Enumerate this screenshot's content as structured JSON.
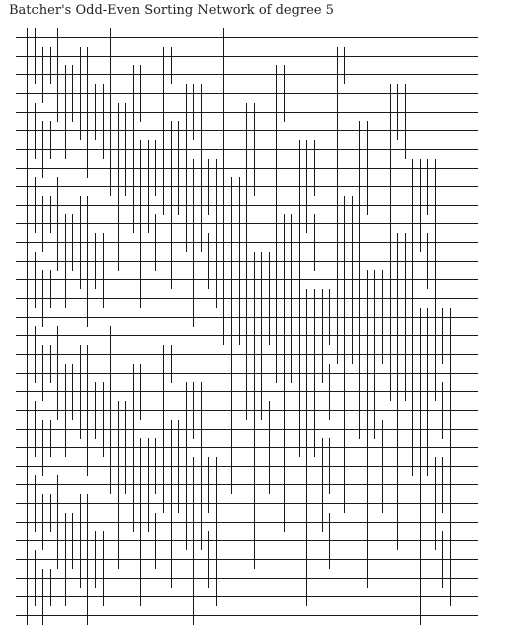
{
  "title": "Batcher's Odd-Even Sorting Network of degree 5",
  "diagram": {
    "type": "sorting-network",
    "algorithm": "batcher-odd-even-mergesort",
    "degree": 5,
    "wires": 32,
    "line_color": "#1a1a1a"
  }
}
